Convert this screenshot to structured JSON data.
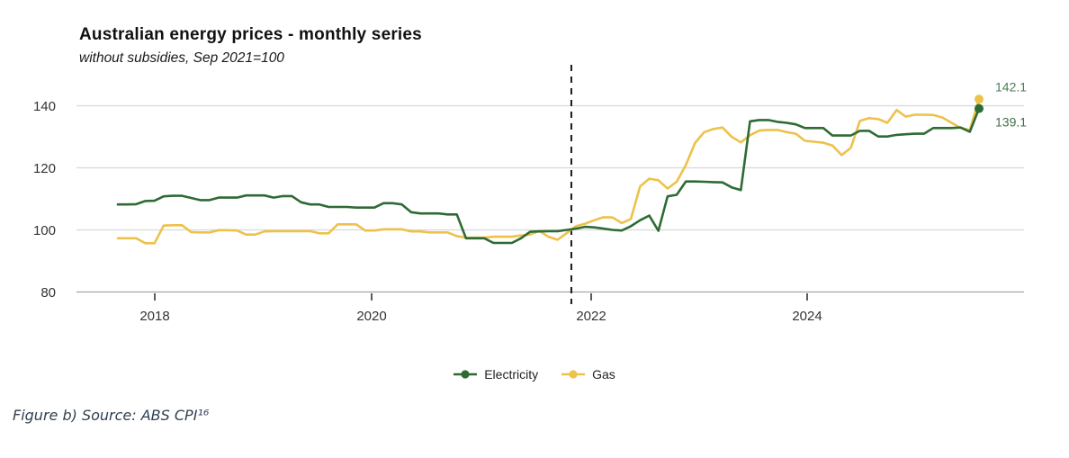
{
  "header": {
    "title": "Australian energy prices - monthly series",
    "subtitle": "without subsidies, Sep 2021=100"
  },
  "chart_data": {
    "type": "line",
    "title": "Australian energy prices - monthly series",
    "subtitle": "without subsidies, Sep 2021=100",
    "x_unit": "month",
    "x_start": "2017-09",
    "x_end": "2025-07",
    "x_tick_labels": [
      "2018",
      "2020",
      "2022",
      "2024"
    ],
    "y_tick_labels": [
      "140",
      "120",
      "100",
      "80"
    ],
    "y_gridline_values": [
      140,
      120,
      100
    ],
    "ylim": [
      80,
      148
    ],
    "grid": true,
    "legend_position": "bottom",
    "reference_line": {
      "label": "Sep 2021=100",
      "x_index": 49.5
    },
    "series": [
      {
        "name": "Electricity",
        "color": "#2e6b34",
        "end_label": "139.1",
        "end_label_color": "#41704a",
        "values": [
          108.2,
          108.2,
          108.3,
          109.3,
          109.4,
          110.8,
          111.0,
          111.0,
          110.3,
          109.6,
          109.6,
          110.4,
          110.4,
          110.4,
          111.1,
          111.1,
          111.1,
          110.4,
          110.9,
          110.9,
          108.9,
          108.2,
          108.2,
          107.4,
          107.4,
          107.4,
          107.2,
          107.2,
          107.2,
          108.6,
          108.6,
          108.2,
          105.7,
          105.3,
          105.3,
          105.3,
          105.0,
          105.0,
          97.3,
          97.3,
          97.3,
          95.8,
          95.8,
          95.8,
          97.3,
          99.4,
          99.5,
          99.6,
          99.6,
          100.0,
          100.4,
          101.0,
          100.8,
          100.4,
          100.0,
          99.8,
          101.2,
          103.1,
          104.6,
          99.7,
          110.8,
          111.3,
          115.6,
          115.6,
          115.5,
          115.4,
          115.3,
          113.7,
          112.8,
          135.0,
          135.4,
          135.4,
          134.8,
          134.5,
          134.0,
          132.8,
          132.8,
          132.8,
          130.4,
          130.4,
          130.4,
          131.9,
          131.9,
          130.1,
          130.1,
          130.6,
          130.8,
          131.0,
          131.0,
          132.8,
          132.8,
          132.8,
          133.0,
          131.6,
          139.1
        ]
      },
      {
        "name": "Gas",
        "color": "#edc24a",
        "end_label": "142.1",
        "end_label_color": "#4d7c54",
        "values": [
          97.3,
          97.3,
          97.3,
          95.7,
          95.7,
          101.4,
          101.5,
          101.5,
          99.3,
          99.2,
          99.2,
          99.9,
          99.9,
          99.8,
          98.5,
          98.5,
          99.5,
          99.6,
          99.6,
          99.6,
          99.6,
          99.6,
          98.9,
          98.9,
          101.8,
          101.8,
          101.8,
          99.8,
          99.8,
          100.2,
          100.2,
          100.2,
          99.5,
          99.5,
          99.2,
          99.2,
          99.2,
          98.0,
          97.5,
          97.5,
          97.5,
          97.8,
          97.8,
          97.8,
          98.2,
          98.5,
          99.7,
          97.8,
          96.8,
          99.0,
          101.2,
          102.0,
          103.1,
          104.1,
          104.0,
          102.2,
          103.5,
          114.0,
          116.5,
          116.0,
          113.3,
          115.5,
          120.9,
          128.0,
          131.5,
          132.5,
          133.0,
          130.0,
          128.2,
          130.5,
          132.0,
          132.2,
          132.2,
          131.5,
          131.0,
          128.7,
          128.4,
          128.1,
          127.2,
          124.1,
          126.4,
          135.1,
          136.0,
          135.7,
          134.5,
          138.6,
          136.5,
          137.1,
          137.1,
          137.0,
          136.2,
          134.5,
          132.8,
          132.2,
          142.1
        ]
      }
    ]
  },
  "legend": {
    "items": [
      {
        "label": "Electricity"
      },
      {
        "label": "Gas"
      }
    ]
  },
  "footer": {
    "source": "Figure b) Source: ABS CPI¹⁶"
  },
  "colors": {
    "gridline": "#d9d9d9",
    "axis": "#a6a6a6",
    "tick": "#333333",
    "tick_label": "#333333",
    "reference_line": "#1a1a1a"
  }
}
